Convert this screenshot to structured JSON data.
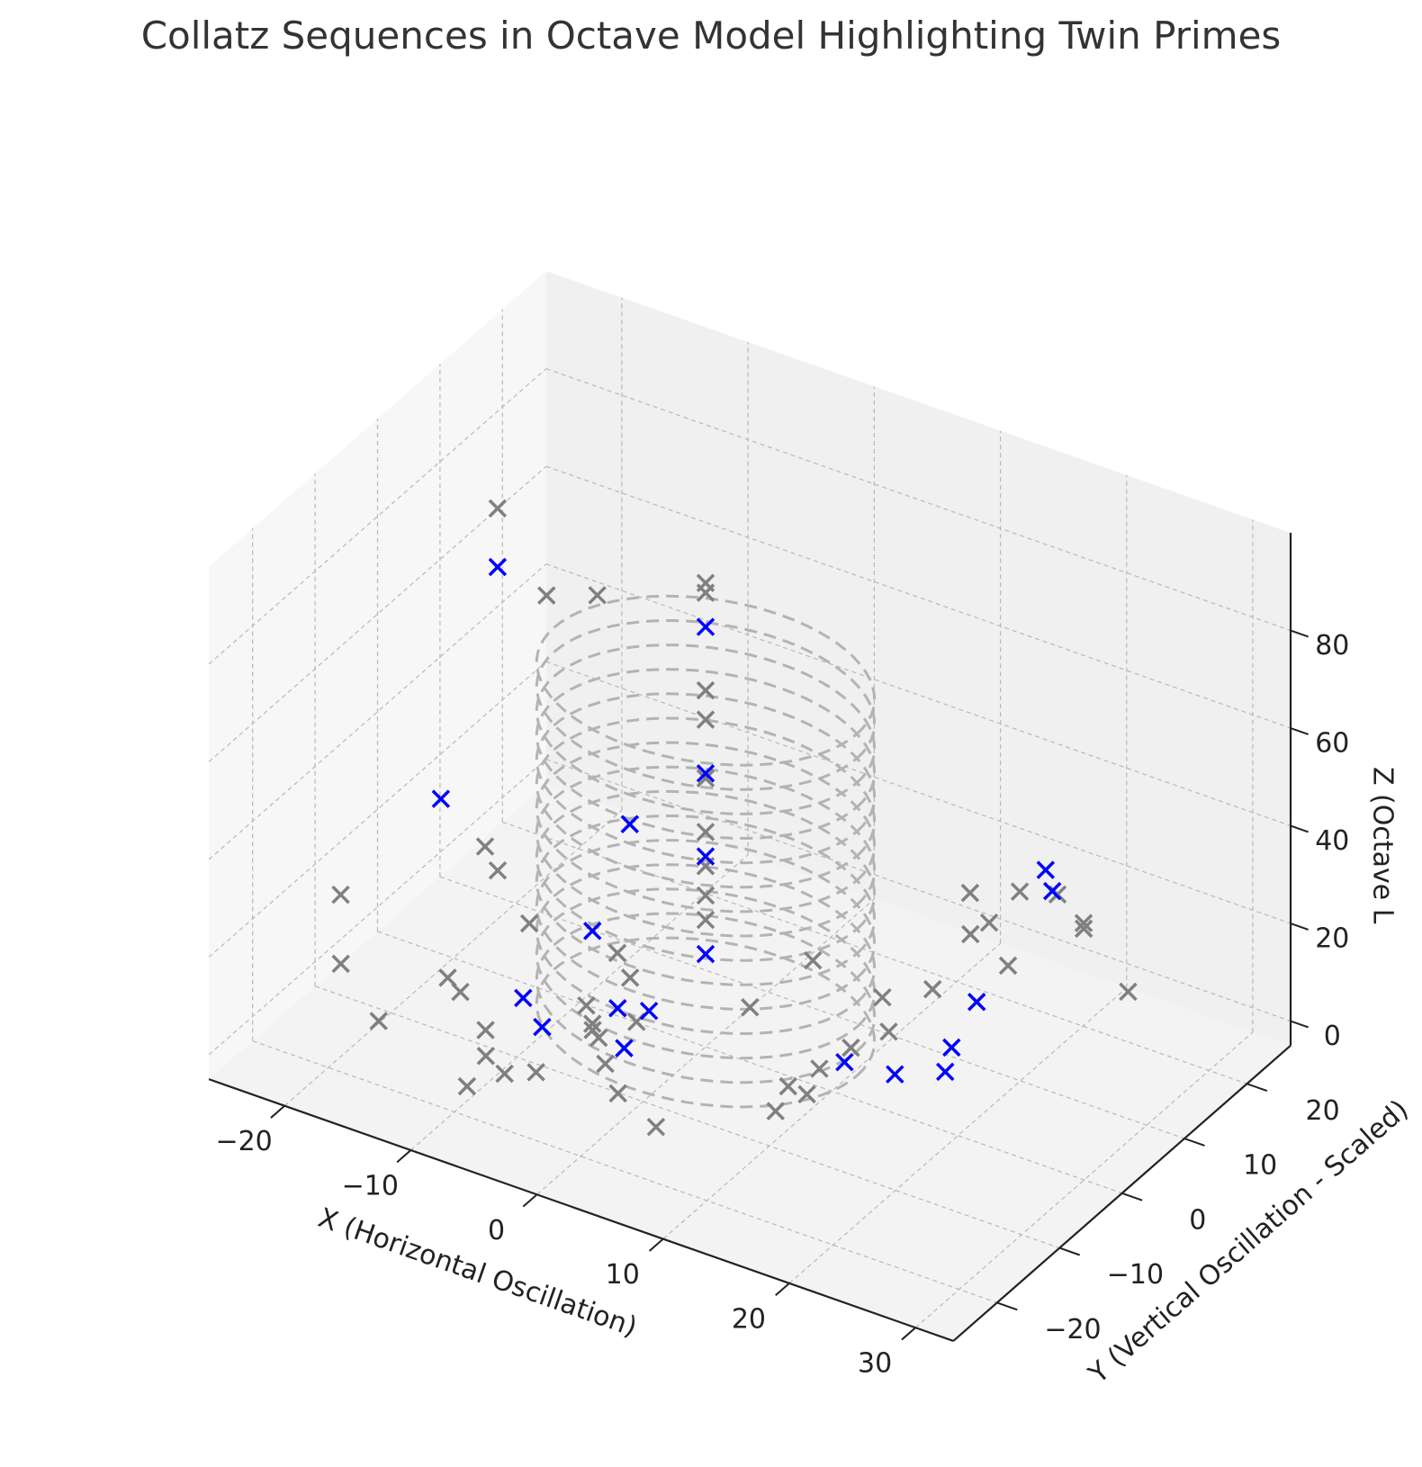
{
  "chart_data": {
    "type": "scatter",
    "projection": "3d",
    "title": "Collatz Sequences in Octave Model Highlighting Twin Primes",
    "xlabel": "X (Horizontal Oscillation)",
    "ylabel": "Y (Vertical Oscillation - Scaled)",
    "zlabel": "Z (Octave Level)",
    "zlabel_visible_text": "Z (Octave L",
    "x_ticks": [
      "−20",
      "−10",
      "0",
      "10",
      "20",
      "30"
    ],
    "y_ticks": [
      "−20",
      "−10",
      "0",
      "10",
      "20"
    ],
    "z_ticks": [
      "0",
      "20",
      "40",
      "60",
      "80"
    ],
    "grid": true,
    "legend": "none",
    "marker": "x",
    "colors": {
      "regular": "#808080",
      "twin_prime": "#0000ff",
      "octave_rings": "#b3b3b3"
    },
    "octave_rings": {
      "radius": 12,
      "z_levels": [
        0,
        5,
        10,
        15,
        20,
        25,
        30,
        35,
        40,
        45,
        50,
        55,
        60,
        65,
        70
      ]
    },
    "series": [
      {
        "role": "regular",
        "points": [
          [
            -23,
            21,
            43
          ],
          [
            -17,
            17,
            53
          ],
          [
            -15,
            -3,
            95
          ],
          [
            -21,
            -16,
            25
          ],
          [
            -15,
            -5,
            28
          ],
          [
            -14,
            -5,
            24
          ],
          [
            -20,
            -18,
            14
          ],
          [
            -14,
            -13,
            11
          ],
          [
            -13,
            -13,
            9
          ],
          [
            -17,
            -18,
            5
          ],
          [
            -11,
            -13,
            3
          ],
          [
            -9,
            -17,
            4
          ],
          [
            -10,
            -18,
            -2
          ],
          [
            -9,
            -14,
            -3
          ],
          [
            -11,
            -6,
            17
          ],
          [
            -5,
            -9,
            9
          ],
          [
            -4,
            -4,
            10
          ],
          [
            -4,
            -10,
            6
          ],
          [
            -7,
            -13,
            -2
          ],
          [
            -6,
            -5,
            -3
          ],
          [
            -1,
            -12,
            -2
          ],
          [
            -6,
            -6,
            1
          ],
          [
            -3,
            -5,
            3
          ],
          [
            -6,
            -2,
            11
          ],
          [
            -3,
            -10,
            0
          ],
          [
            0,
            0,
            88
          ],
          [
            0,
            0,
            90
          ],
          [
            0,
            0,
            68
          ],
          [
            0,
            0,
            62
          ],
          [
            0,
            0,
            50
          ],
          [
            0,
            0,
            39
          ],
          [
            0,
            0,
            32
          ],
          [
            0,
            0,
            26
          ],
          [
            0,
            0,
            21
          ],
          [
            3,
            -14,
            -3
          ],
          [
            5,
            -3,
            11
          ],
          [
            9,
            -1,
            22
          ],
          [
            11,
            -9,
            7
          ],
          [
            11,
            -4,
            5
          ],
          [
            10,
            -9,
            1
          ],
          [
            11,
            -6,
            2
          ],
          [
            13,
            -3,
            10
          ],
          [
            15,
            -2,
            21
          ],
          [
            16,
            -3,
            16
          ],
          [
            17,
            2,
            20
          ],
          [
            20,
            2,
            34
          ],
          [
            20,
            5,
            33
          ],
          [
            17,
            8,
            33
          ],
          [
            21,
            6,
            24
          ],
          [
            15,
            20,
            18
          ],
          [
            17,
            22,
            17
          ],
          [
            27,
            6,
            37
          ],
          [
            26,
            8,
            35
          ],
          [
            32,
            3,
            32
          ]
        ]
      },
      {
        "role": "twin_prime",
        "points": [
          [
            -15,
            -3,
            83
          ],
          [
            0,
            0,
            81
          ],
          [
            0,
            0,
            51
          ],
          [
            0,
            0,
            34
          ],
          [
            0,
            0,
            14
          ],
          [
            -19,
            -4,
            33
          ],
          [
            -7,
            2,
            32
          ],
          [
            -6,
            -6,
            20
          ],
          [
            -10,
            -9,
            6
          ],
          [
            -8,
            -10,
            3
          ],
          [
            -4,
            -6,
            6
          ],
          [
            -2,
            -9,
            3
          ],
          [
            -3,
            -3,
            3
          ],
          [
            12,
            -2,
            5
          ],
          [
            15,
            0,
            3
          ],
          [
            18,
            2,
            4
          ],
          [
            19,
            1,
            11
          ],
          [
            20,
            3,
            19
          ],
          [
            22,
            10,
            40
          ],
          [
            25,
            5,
            44
          ]
        ]
      }
    ]
  }
}
